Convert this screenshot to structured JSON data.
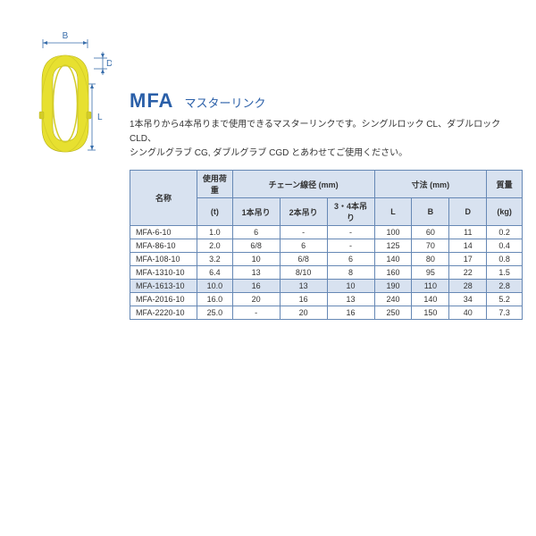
{
  "title_code": "MFA",
  "title_jp": "マスターリンク",
  "description_line1": "1本吊りから4本吊りまで使用できるマスターリンクです。シングルロック CL、ダブルロック CLD、",
  "description_line2": "シングルグラブ CG, ダブルグラブ CGD とあわせてご使用ください。",
  "diagram": {
    "dim_B": "B",
    "dim_D": "D",
    "dim_L": "L",
    "ring_outer": "#e7e030",
    "ring_inner": "#d3cc28",
    "ring_shadow": "#b5af1e",
    "dim_line": "#396eab",
    "text_color": "#396eab"
  },
  "table": {
    "header": {
      "name": "名称",
      "load": "使用荷重",
      "load_unit": "(t)",
      "chain": "チェーン線径 (mm)",
      "chain1": "1本吊り",
      "chain2": "2本吊り",
      "chain34": "3・4本吊り",
      "dims": "寸法 (mm)",
      "L": "L",
      "B": "B",
      "D": "D",
      "mass": "質量",
      "mass_unit": "(kg)"
    },
    "rows": [
      {
        "name": "MFA-6-10",
        "load": "1.0",
        "c1": "6",
        "c2": "-",
        "c34": "-",
        "L": "100",
        "B": "60",
        "D": "11",
        "mass": "0.2",
        "hl": false
      },
      {
        "name": "MFA-86-10",
        "load": "2.0",
        "c1": "6/8",
        "c2": "6",
        "c34": "-",
        "L": "125",
        "B": "70",
        "D": "14",
        "mass": "0.4",
        "hl": false
      },
      {
        "name": "MFA-108-10",
        "load": "3.2",
        "c1": "10",
        "c2": "6/8",
        "c34": "6",
        "L": "140",
        "B": "80",
        "D": "17",
        "mass": "0.8",
        "hl": false
      },
      {
        "name": "MFA-1310-10",
        "load": "6.4",
        "c1": "13",
        "c2": "8/10",
        "c34": "8",
        "L": "160",
        "B": "95",
        "D": "22",
        "mass": "1.5",
        "hl": false
      },
      {
        "name": "MFA-1613-10",
        "load": "10.0",
        "c1": "16",
        "c2": "13",
        "c34": "10",
        "L": "190",
        "B": "110",
        "D": "28",
        "mass": "2.8",
        "hl": true
      },
      {
        "name": "MFA-2016-10",
        "load": "16.0",
        "c1": "20",
        "c2": "16",
        "c34": "13",
        "L": "240",
        "B": "140",
        "D": "34",
        "mass": "5.2",
        "hl": false
      },
      {
        "name": "MFA-2220-10",
        "load": "25.0",
        "c1": "-",
        "c2": "20",
        "c34": "16",
        "L": "250",
        "B": "150",
        "D": "40",
        "mass": "7.3",
        "hl": false
      }
    ]
  }
}
